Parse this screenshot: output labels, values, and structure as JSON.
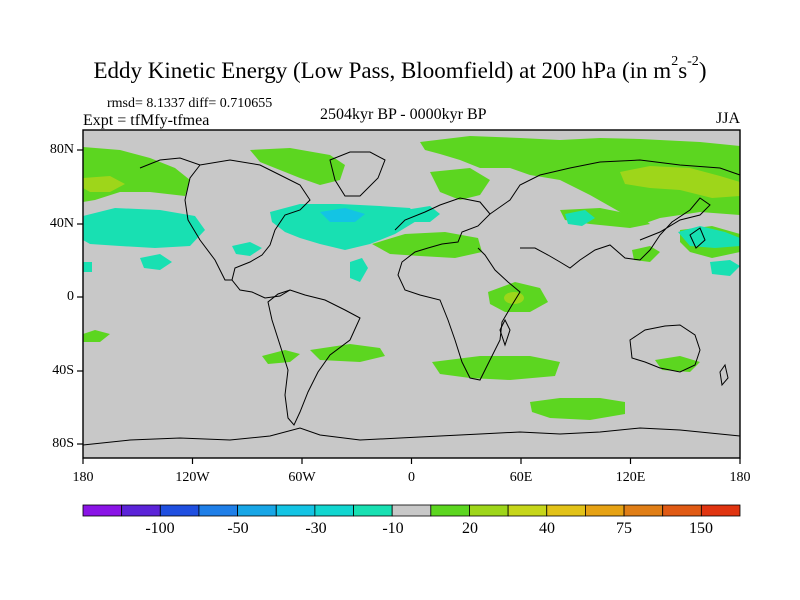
{
  "title": {
    "main": "Eddy Kinetic Energy (Low Pass, Bloomfield) at 200 hPa (in m",
    "sup1": "2",
    "mid": "s",
    "sup2": "-2",
    "end": ")"
  },
  "stats": "rmsd= 8.1337 diff= 0.710655",
  "expt": "Expt = tfMfy-tfmea",
  "period": "2504kyr BP - 0000kyr BP",
  "season": "JJA",
  "axes": {
    "y_ticks": [
      "80N",
      "40N",
      "0",
      "40S",
      "80S"
    ],
    "x_ticks": [
      "180",
      "120W",
      "60W",
      "0",
      "60E",
      "120E",
      "180"
    ]
  },
  "colorbar": {
    "labels": [
      "-100",
      "-50",
      "-30",
      "-10",
      "20",
      "40",
      "75",
      "150"
    ],
    "colors": [
      "#8a14e6",
      "#5b23d8",
      "#1f4fe0",
      "#1f7fe8",
      "#18a6e6",
      "#13c4e4",
      "#11d6d0",
      "#18e0b2",
      "#c8c8c8",
      "#5cd620",
      "#9ed61a",
      "#c6d61a",
      "#e2c218",
      "#e6a214",
      "#e07e16",
      "#e05a14",
      "#e03410"
    ]
  },
  "colors": {
    "land_neutral": "#c8c8c8",
    "cyan": "#18e0b2",
    "green": "#5cd620",
    "lime": "#9ed61a"
  }
}
